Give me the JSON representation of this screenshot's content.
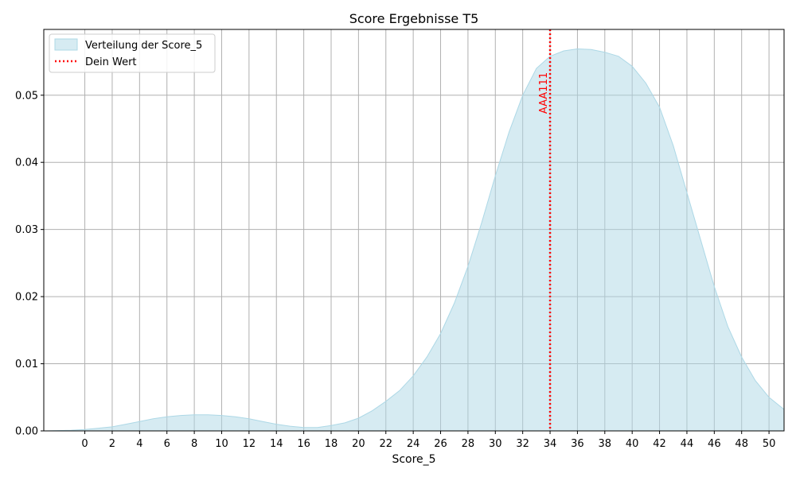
{
  "chart_data": {
    "type": "area",
    "title": "Score Ergebnisse T5",
    "xlabel": "Score_5",
    "ylabel": "",
    "xlim": [
      -3,
      51.1
    ],
    "ylim": [
      0,
      0.0598
    ],
    "x_ticks": [
      0,
      2,
      4,
      6,
      8,
      10,
      12,
      14,
      16,
      18,
      20,
      22,
      24,
      26,
      28,
      30,
      32,
      34,
      36,
      38,
      40,
      42,
      44,
      46,
      48,
      50
    ],
    "y_ticks": [
      0.0,
      0.01,
      0.02,
      0.03,
      0.04,
      0.05
    ],
    "y_tick_labels": [
      "0.00",
      "0.01",
      "0.02",
      "0.03",
      "0.04",
      "0.05"
    ],
    "grid": true,
    "legend_position": "top-left",
    "series": [
      {
        "name": "Verteilung der Score_5",
        "kind": "density-area",
        "color": "#add8e6",
        "x": [
          -3,
          -1,
          0,
          1,
          2,
          3,
          4,
          5,
          6,
          7,
          8,
          9,
          10,
          11,
          12,
          13,
          14,
          15,
          16,
          17,
          18,
          19,
          20,
          21,
          22,
          23,
          24,
          25,
          26,
          27,
          28,
          29,
          30,
          31,
          32,
          33,
          34,
          35,
          36,
          37,
          38,
          39,
          40,
          41,
          42,
          43,
          44,
          45,
          46,
          47,
          48,
          49,
          50,
          51.1
        ],
        "y": [
          0.0,
          0.0001,
          0.0002,
          0.0004,
          0.0006,
          0.001,
          0.0014,
          0.0018,
          0.0021,
          0.0023,
          0.0024,
          0.0024,
          0.0023,
          0.0021,
          0.0018,
          0.0014,
          0.001,
          0.0007,
          0.0005,
          0.0005,
          0.0008,
          0.0012,
          0.0019,
          0.003,
          0.0044,
          0.006,
          0.0082,
          0.011,
          0.0145,
          0.019,
          0.0245,
          0.031,
          0.038,
          0.0445,
          0.05,
          0.054,
          0.0558,
          0.0566,
          0.0569,
          0.0568,
          0.0564,
          0.0558,
          0.0543,
          0.0518,
          0.0482,
          0.0425,
          0.0355,
          0.0285,
          0.0215,
          0.0155,
          0.011,
          0.0075,
          0.005,
          0.0032
        ]
      }
    ],
    "marker": {
      "name": "Dein Wert",
      "x": 34,
      "color": "#ff0000",
      "label": "AAA111"
    }
  }
}
